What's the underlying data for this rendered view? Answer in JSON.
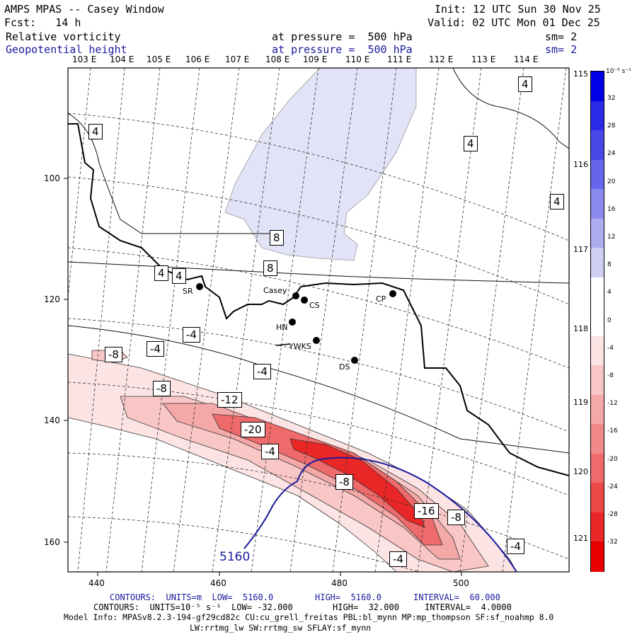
{
  "header": {
    "title": "AMPS MPAS -- Casey Window",
    "init": "Init: 12 UTC Sun 30 Nov 25",
    "fcst": "Fcst:   14 h",
    "valid": "Valid: 02 UTC Mon 01 Dec 25",
    "field1_name": "Relative vorticity",
    "field1_level": "at pressure =  500 hPa",
    "field1_sm": "sm= 2",
    "field2_name": "Geopotential height",
    "field2_level": "at pressure =  500 hPa",
    "field2_sm": "sm= 2"
  },
  "top_lon_labels": [
    "103 E",
    "104 E",
    "105 E",
    "106 E",
    "107 E",
    "108 E",
    "109 E",
    "110 E",
    "111 E",
    "112 E",
    "113 E",
    "114 E"
  ],
  "right_lon_labels": [
    "115 E",
    "116 E",
    "117 E",
    "118 E",
    "119 E",
    "120 E",
    "121 E"
  ],
  "y_axis": [
    "100",
    "120",
    "140",
    "160"
  ],
  "x_axis": [
    "440",
    "460",
    "480",
    "500"
  ],
  "stations": [
    {
      "name": "SR"
    },
    {
      "name": "Casey"
    },
    {
      "name": "CS"
    },
    {
      "name": "CP"
    },
    {
      "name": "HN"
    },
    {
      "name": "YWKS"
    },
    {
      "name": "DS"
    }
  ],
  "contour_labels": [
    "4",
    "4",
    "4",
    "4",
    "4",
    "4",
    "8",
    "8",
    "-4",
    "-4",
    "-4",
    "-8",
    "-8",
    "-12",
    "-20",
    "-4",
    "-8",
    "-16",
    "-8",
    "-4",
    "-4"
  ],
  "height_label": "5160",
  "colorbar": {
    "unit": "10⁻⁵ s⁻¹",
    "ticks": [
      "32",
      "28",
      "24",
      "20",
      "16",
      "12",
      "8",
      "4",
      "0",
      "-4",
      "-8",
      "-12",
      "-16",
      "-20",
      "-24",
      "-28",
      "-32"
    ],
    "colors": [
      "#0000e6",
      "#2a2ae6",
      "#4848e8",
      "#6666ea",
      "#8a8aec",
      "#acacee",
      "#cfcff4",
      "#ffffff",
      "#ffffff",
      "#fde4e4",
      "#f9c6c6",
      "#f5a8a8",
      "#f28a8a",
      "#ef6a6a",
      "#ec4848",
      "#ea2626",
      "#e80000"
    ]
  },
  "footer": {
    "line1_a": "CONTOURS:  UNITS=m  LOW=  5160.0",
    "line1_b": "HIGH=  5160.0",
    "line1_c": "INTERVAL=  60.000",
    "line2_a": "CONTOURS:  UNITS=10⁻⁵ s⁻¹  LOW= -32.000",
    "line2_b": "HIGH=  32.000",
    "line2_c": "INTERVAL=  4.0000",
    "line3": "Model Info: MPASv8.2.3-194-gf29cd82c CU:cu_grell_freitas PBL:bl_mynn MP:mp_thompson SF:sf_noahmp 8.0",
    "line4": "LW:rrtmg_lw SW:rrtmg_sw SFLAY:sf_mynn"
  }
}
